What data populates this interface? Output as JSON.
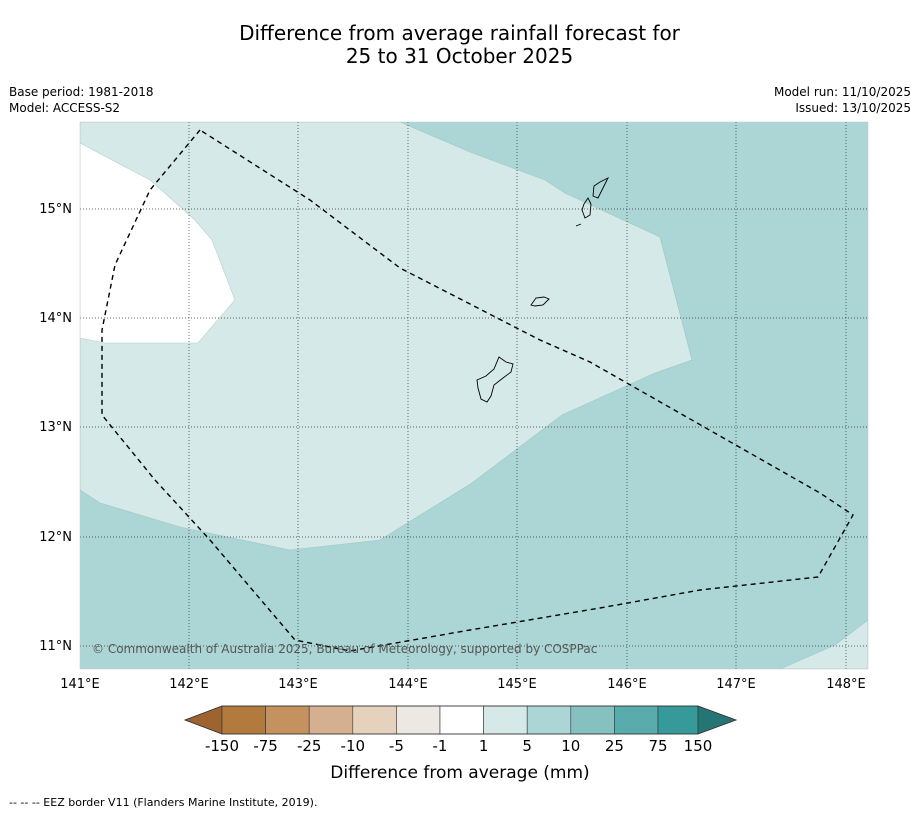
{
  "title": {
    "line1": "Difference from average rainfall forecast for",
    "line2": "25 to 31 October 2025"
  },
  "meta": {
    "base_period": "Base period: 1981-2018",
    "model": "Model: ACCESS-S2",
    "model_run": "Model run: 11/10/2025",
    "issued": "Issued: 13/10/2025"
  },
  "map": {
    "lon_labels": [
      "141°E",
      "142°E",
      "143°E",
      "144°E",
      "145°E",
      "146°E",
      "147°E",
      "148°E"
    ],
    "lat_labels": [
      "15°N",
      "14°N",
      "13°N",
      "12°N",
      "11°N"
    ],
    "copyright": "© Commonwealth of Australia 2025, Bureau of Meteorology, supported by COSPPac",
    "colors": {
      "light_teal": "#d4e9e8",
      "mid_teal": "#acd5d5",
      "white": "#ffffff"
    }
  },
  "colorbar": {
    "labels": [
      "-150",
      "-75",
      "-25",
      "-10",
      "-5",
      "-1",
      "1",
      "5",
      "10",
      "25",
      "75",
      "150"
    ],
    "colors": [
      "#9d6331",
      "#b37a3e",
      "#c3925f",
      "#d5b090",
      "#e6d1bd",
      "#eee8e3",
      "#ffffff",
      "#d4e9e8",
      "#acd5d5",
      "#86c0c0",
      "#5aabab",
      "#379a9a",
      "#267575"
    ],
    "title": "Difference from average (mm)"
  },
  "footer": {
    "legend": "--  --  -- EEZ border V11 (Flanders Marine Institute, 2019)."
  }
}
